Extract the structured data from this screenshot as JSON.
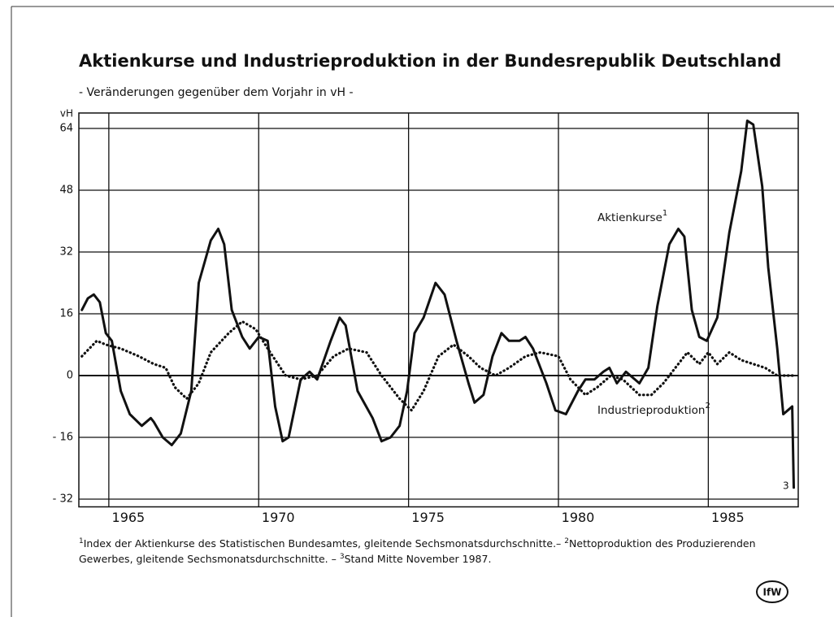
{
  "chart_data": {
    "type": "line",
    "title": "Aktienkurse und Industrieproduktion in der Bundesrepublik Deutschland",
    "subtitle": "- Veränderungen gegenüber dem Vorjahr in vH -",
    "y_unit": "vH",
    "xlim": [
      1964,
      1988
    ],
    "xticks": [
      1965,
      1970,
      1975,
      1980,
      1985
    ],
    "ylim": [
      -34,
      68
    ],
    "yticks": [
      64,
      48,
      32,
      16,
      0,
      {
        "value": -16,
        "label": "- 16"
      },
      {
        "value": -32,
        "label": "- 32"
      }
    ],
    "grid": true,
    "series": [
      {
        "name": "Aktienkurse",
        "note": "1",
        "color": "#111111",
        "style": "solid",
        "x": [
          1964.1,
          1964.3,
          1964.5,
          1964.7,
          1964.9,
          1965.1,
          1965.4,
          1965.7,
          1966.1,
          1966.4,
          1966.5,
          1966.8,
          1967.1,
          1967.4,
          1967.75,
          1968.0,
          1968.4,
          1968.65,
          1968.85,
          1969.1,
          1969.45,
          1969.7,
          1970.0,
          1970.3,
          1970.55,
          1970.8,
          1971.0,
          1971.4,
          1971.7,
          1971.95,
          1972.4,
          1972.7,
          1972.9,
          1973.3,
          1973.8,
          1974.1,
          1974.4,
          1974.7,
          1974.95,
          1975.2,
          1975.5,
          1975.9,
          1976.2,
          1976.6,
          1977.0,
          1977.2,
          1977.5,
          1977.8,
          1978.1,
          1978.35,
          1978.7,
          1978.9,
          1979.15,
          1979.6,
          1979.9,
          1980.25,
          1980.65,
          1980.9,
          1981.2,
          1981.5,
          1981.7,
          1981.95,
          1982.25,
          1982.4,
          1982.7,
          1983.0,
          1983.3,
          1983.7,
          1984.0,
          1984.2,
          1984.45,
          1984.7,
          1984.95,
          1985.3,
          1985.7,
          1986.1,
          1986.3,
          1986.5,
          1986.8,
          1987.0,
          1987.3,
          1987.5,
          1987.65,
          1987.8,
          1987.85
        ],
        "values": [
          17,
          20,
          21,
          19,
          11,
          9,
          -4,
          -10,
          -13,
          -11,
          -12,
          -16,
          -18,
          -15,
          -4,
          24,
          35,
          38,
          34,
          17,
          10,
          7,
          10,
          9,
          -8,
          -17,
          -16,
          -1,
          1,
          -1,
          9,
          15,
          13,
          -4,
          -11,
          -17,
          -16,
          -13,
          -4,
          11,
          15,
          24,
          21,
          9,
          -2,
          -7,
          -5,
          5,
          11,
          9,
          9,
          10,
          7,
          -2,
          -9,
          -10,
          -4,
          -1,
          -1,
          1,
          2,
          -2,
          1,
          0,
          -2,
          2,
          18,
          34,
          38,
          36,
          17,
          10,
          9,
          15,
          37,
          53,
          66,
          65,
          49,
          28,
          7,
          -10,
          -9,
          -8,
          -29
        ]
      },
      {
        "name": "Industrieproduktion",
        "note": "2",
        "color": "#111111",
        "style": "dotted",
        "x": [
          1964.1,
          1964.6,
          1964.9,
          1965.4,
          1966.0,
          1966.5,
          1966.9,
          1967.2,
          1967.6,
          1968.0,
          1968.4,
          1969.0,
          1969.45,
          1969.9,
          1970.3,
          1970.9,
          1971.4,
          1971.95,
          1972.5,
          1973.0,
          1973.6,
          1974.1,
          1974.7,
          1975.1,
          1975.5,
          1976.0,
          1976.5,
          1977.0,
          1977.4,
          1977.9,
          1978.35,
          1978.9,
          1979.4,
          1980.0,
          1980.4,
          1980.9,
          1981.3,
          1981.75,
          1982.15,
          1982.7,
          1983.1,
          1983.5,
          1983.9,
          1984.3,
          1984.7,
          1985.0,
          1985.3,
          1985.7,
          1986.1,
          1986.5,
          1986.9,
          1987.3,
          1987.7,
          1987.9
        ],
        "values": [
          5,
          9,
          8,
          7,
          5,
          3,
          2,
          -3,
          -6,
          -2,
          6,
          11,
          14,
          12,
          7,
          0,
          -1,
          0,
          5,
          7,
          6,
          0,
          -6,
          -9,
          -4,
          5,
          8,
          5,
          2,
          0,
          2,
          5,
          6,
          5,
          -1,
          -5,
          -3,
          0,
          -1,
          -5,
          -5,
          -2,
          2,
          6,
          3,
          6,
          3,
          6,
          4,
          3,
          2,
          0,
          0,
          0
        ]
      }
    ],
    "annotations": [
      {
        "text": "3"
      }
    ],
    "footnotes": [
      {
        "mark": "1",
        "text": "Index der Aktienkurse des Statistischen Bundesamtes, gleitende Sechsmonatsdurchschnitte.–"
      },
      {
        "mark": "2",
        "text": "Nettoproduktion des Produzierenden Gewerbes, gleitende Sechsmonatsdurchschnitte. –"
      },
      {
        "mark": "3",
        "text": "Stand Mitte November 1987."
      }
    ],
    "logo": "IfW"
  }
}
